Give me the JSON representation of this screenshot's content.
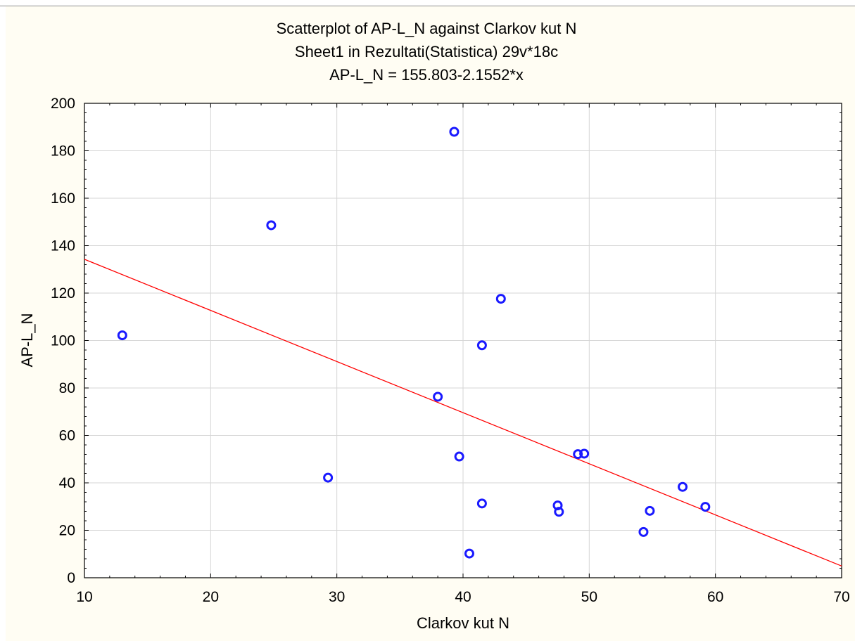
{
  "chart_data": {
    "type": "scatter",
    "title": "Scatterplot of AP-L_N against Clarkov kut  N",
    "subtitle": "Sheet1 in Rezultati(Statistica) 29v*18c",
    "equation": "AP-L_N = 155.803-2.1552*x",
    "xlabel": "Clarkov kut  N",
    "ylabel": "AP-L_N",
    "xlim": [
      10,
      70
    ],
    "ylim": [
      0,
      200
    ],
    "xticks": [
      10,
      20,
      30,
      40,
      50,
      60,
      70
    ],
    "yticks": [
      0,
      20,
      40,
      60,
      80,
      100,
      120,
      140,
      160,
      180,
      200
    ],
    "grid": true,
    "series": [
      {
        "marker": "open-circle",
        "color": "#1a1aff",
        "points": [
          {
            "x": 13.0,
            "y": 102.2
          },
          {
            "x": 24.8,
            "y": 148.6
          },
          {
            "x": 29.3,
            "y": 42.2
          },
          {
            "x": 38.0,
            "y": 76.3
          },
          {
            "x": 39.3,
            "y": 188.0
          },
          {
            "x": 39.7,
            "y": 51.1
          },
          {
            "x": 40.5,
            "y": 10.2
          },
          {
            "x": 41.5,
            "y": 31.3
          },
          {
            "x": 41.5,
            "y": 98.0
          },
          {
            "x": 43.0,
            "y": 117.6
          },
          {
            "x": 47.5,
            "y": 30.5
          },
          {
            "x": 47.6,
            "y": 27.8
          },
          {
            "x": 49.1,
            "y": 52.1
          },
          {
            "x": 49.6,
            "y": 52.3
          },
          {
            "x": 54.3,
            "y": 19.3
          },
          {
            "x": 54.8,
            "y": 28.2
          },
          {
            "x": 57.4,
            "y": 38.3
          },
          {
            "x": 59.2,
            "y": 29.9
          }
        ]
      }
    ],
    "regression": {
      "intercept": 155.803,
      "slope": -2.1552,
      "color": "#ff0000"
    }
  }
}
